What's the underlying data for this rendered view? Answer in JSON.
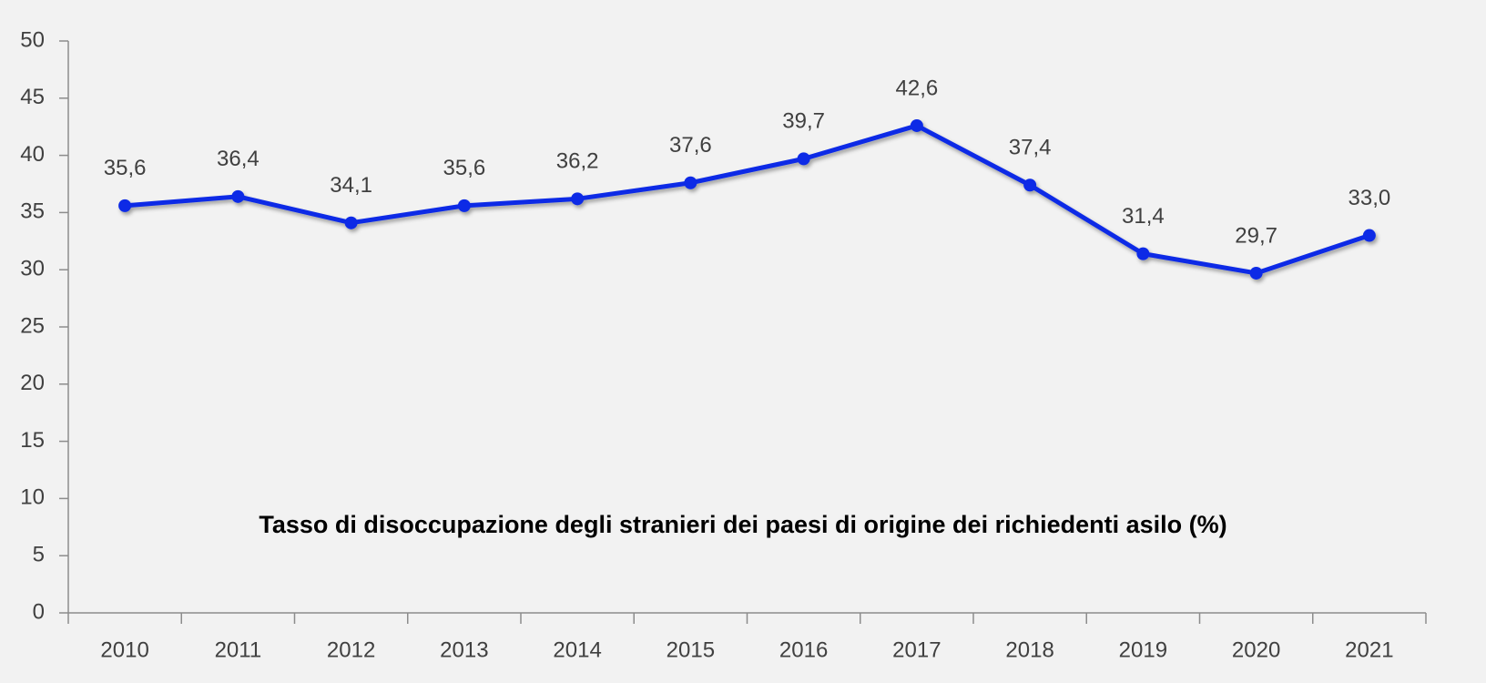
{
  "chart_data": {
    "type": "line",
    "title": "Tasso di disoccupazione degli stranieri dei paesi di origine dei richiedenti asilo (%)",
    "categories": [
      "2010",
      "2011",
      "2012",
      "2013",
      "2014",
      "2015",
      "2016",
      "2017",
      "2018",
      "2019",
      "2020",
      "2021"
    ],
    "series": [
      {
        "name": "Tasso di disoccupazione",
        "color": "#0a2be6",
        "values": [
          35.6,
          36.4,
          34.1,
          35.6,
          36.2,
          37.6,
          39.7,
          42.6,
          37.4,
          31.4,
          29.7,
          33.0
        ],
        "value_labels": [
          "35,6",
          "36,4",
          "34,1",
          "35,6",
          "36,2",
          "37,6",
          "39,7",
          "42,6",
          "37,4",
          "31,4",
          "29,7",
          "33,0"
        ]
      }
    ],
    "ylim": [
      0,
      50
    ],
    "yticks": [
      0,
      5,
      10,
      15,
      20,
      25,
      30,
      35,
      40,
      45,
      50
    ],
    "grid": false
  }
}
